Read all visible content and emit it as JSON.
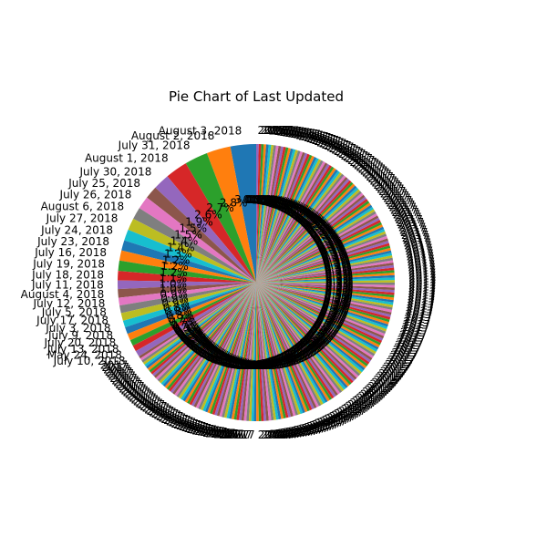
{
  "chart_data": {
    "type": "pie",
    "title": "Pie Chart of Last Updated",
    "start_angle_deg": 90,
    "direction": "counterclockwise",
    "slices": [
      {
        "label": "August 3, 2018",
        "percent": 3.0
      },
      {
        "label": "August 2, 2018",
        "percent": 2.8
      },
      {
        "label": "July 31, 2018",
        "percent": 2.7
      },
      {
        "label": "August 1, 2018",
        "percent": 2.6
      },
      {
        "label": "July 30, 2018",
        "percent": 1.9
      },
      {
        "label": "July 25, 2018",
        "percent": 1.5
      },
      {
        "label": "July 26, 2018",
        "percent": 1.5
      },
      {
        "label": "August 6, 2018",
        "percent": 1.4
      },
      {
        "label": "July 27, 2018",
        "percent": 1.4
      },
      {
        "label": "July 24, 2018",
        "percent": 1.3
      },
      {
        "label": "July 23, 2018",
        "percent": 1.2
      },
      {
        "label": "July 16, 2018",
        "percent": 1.2
      },
      {
        "label": "July 19, 2018",
        "percent": 1.2
      },
      {
        "label": "July 18, 2018",
        "percent": 1.1
      },
      {
        "label": "July 11, 2018",
        "percent": 1.0
      },
      {
        "label": "August 4, 2018",
        "percent": 1.0
      },
      {
        "label": "July 12, 2018",
        "percent": 0.9
      },
      {
        "label": "July 5, 2018",
        "percent": 0.9
      },
      {
        "label": "July 17, 2018",
        "percent": 0.9
      },
      {
        "label": "July 3, 2018",
        "percent": 0.8
      },
      {
        "label": "July 9, 2018",
        "percent": 0.8
      },
      {
        "label": "July 20, 2018",
        "percent": 0.8
      },
      {
        "label": "July 13, 2018",
        "percent": 0.7
      },
      {
        "label": "May 24, 2018",
        "percent": 0.7
      },
      {
        "label": "July 10, 2018",
        "percent": 0.7
      }
    ],
    "remaining_label_text": "2017",
    "remaining_slice_count": 230,
    "remaining_total_percent": 66.2,
    "colors": [
      "#1f77b4",
      "#ff7f0e",
      "#2ca02c",
      "#d62728",
      "#9467bd",
      "#8c564b",
      "#e377c2",
      "#7f7f7f",
      "#bcbd22",
      "#17becf"
    ]
  }
}
